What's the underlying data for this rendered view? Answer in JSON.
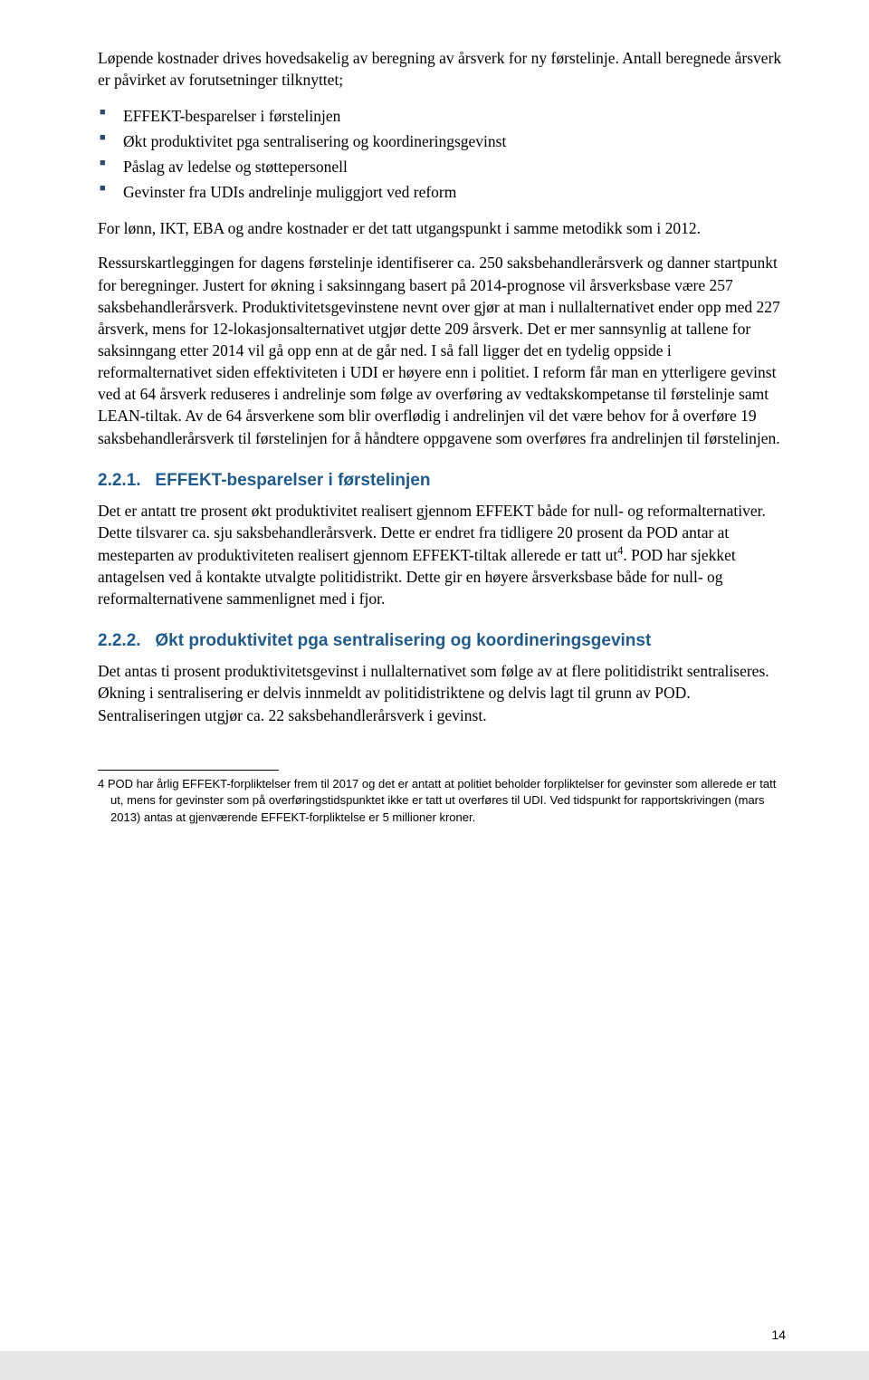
{
  "paragraphs": {
    "intro1": "Løpende kostnader drives hovedsakelig av beregning av årsverk for ny førstelinje. Antall beregnede årsverk er påvirket av forutsetninger tilknyttet;",
    "intro2": "For lønn, IKT, EBA og andre kostnader er det tatt utgangspunkt i samme metodikk som i 2012.",
    "intro3_a": "Ressurskartleggingen for dagens førstelinje identifiserer ca. 250 saksbehandlerårsverk og danner startpunkt for beregninger. Justert for økning i saksinngang basert på 2014-prognose vil årsverksbase være 257 saksbehandlerårsverk. Produktivitetsgevinstene nevnt over gjør at man i nullalternativet ender opp med 227 årsverk, mens for 12-lokasjonsalternativet utgjør dette 209 årsverk. Det er mer sannsynlig at tallene for saksinngang etter 2014 vil gå opp enn at de går ned. I så fall ligger det en tydelig oppside i reformalternativet siden effektiviteten i UDI er høyere enn i politiet. I reform får man en ytterligere gevinst ved at 64 årsverk reduseres i andrelinje som følge av overføring av vedtakskompetanse til førstelinje samt LEAN-tiltak. Av de 64 årsverkene som blir overflødig i andrelinjen vil det være behov for å overføre 19 saksbehandlerårsverk til førstelinjen for å håndtere oppgavene som overføres fra andrelinjen til førstelinjen.",
    "p221_a": "Det er antatt tre prosent økt produktivitet realisert gjennom EFFEKT både for null- og reformalternativer. Dette tilsvarer ca. sju saksbehandlerårsverk. Dette er endret fra tidligere 20 prosent da POD antar at mesteparten av produktiviteten realisert gjennom EFFEKT-tiltak allerede er tatt ut",
    "p221_b": ". POD har sjekket antagelsen ved å kontakte utvalgte politidistrikt. Dette gir en høyere årsverksbase både for null- og reformalternativene sammenlignet med i fjor.",
    "p222": "Det antas ti prosent produktivitetsgevinst i nullalternativet som følge av at flere politidistrikt sentraliseres. Økning i sentralisering er delvis innmeldt av politidistriktene og delvis lagt til grunn av POD. Sentraliseringen utgjør ca. 22 saksbehandlerårsverk i gevinst."
  },
  "bullets": {
    "b1": "EFFEKT-besparelser i førstelinjen",
    "b2": "Økt produktivitet pga sentralisering og koordineringsgevinst",
    "b3": "Påslag av ledelse og støttepersonell",
    "b4": "Gevinster fra UDIs andrelinje muliggjort ved reform"
  },
  "headings": {
    "h221_num": "2.2.1.",
    "h221_txt": "EFFEKT-besparelser i førstelinjen",
    "h222_num": "2.2.2.",
    "h222_txt": "Økt produktivitet pga sentralisering og koordineringsgevinst"
  },
  "footnote": {
    "num": "4",
    "text": "POD har årlig EFFEKT-forpliktelser frem til 2017 og det er antatt at politiet beholder forpliktelser for gevinster som allerede er tatt ut, mens for gevinster som på overføringstidspunktet ikke er tatt ut overføres til UDI. Ved tidspunkt for rapportskrivingen (mars 2013) antas at gjenværende EFFEKT-forpliktelse er 5 millioner kroner."
  },
  "pageNumber": "14",
  "sup4": "4",
  "colors": {
    "heading": "#1f5a8c",
    "bulletMarker": "#2a4a6e",
    "bottomBar": "#e6e7e9"
  }
}
